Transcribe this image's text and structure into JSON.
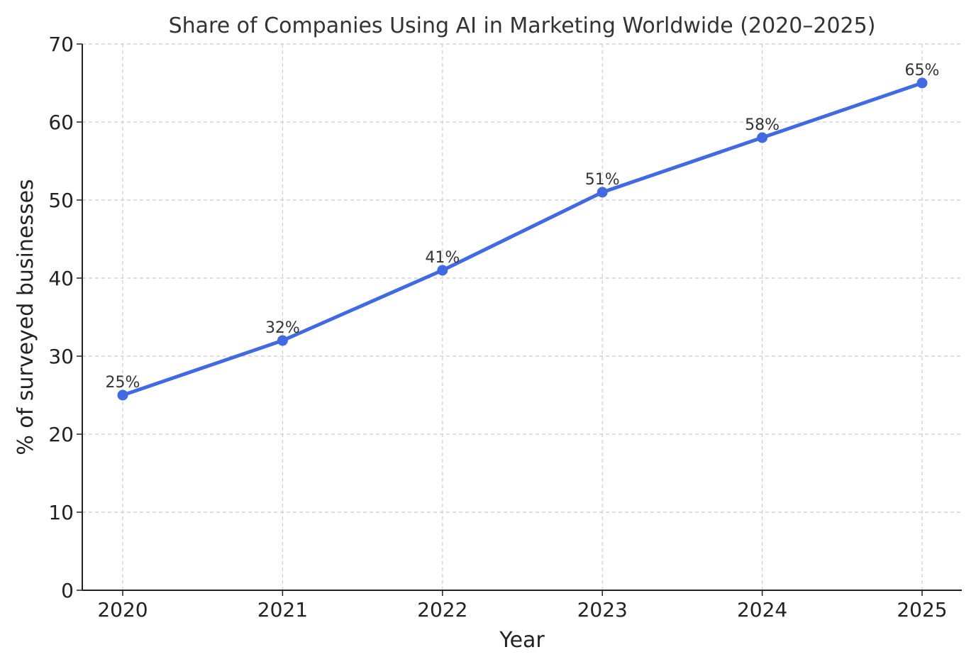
{
  "chart_data": {
    "type": "line",
    "title": "Share of Companies Using AI in Marketing Worldwide (2020–2025)",
    "xlabel": "Year",
    "ylabel": "% of surveyed businesses",
    "categories": [
      "2020",
      "2021",
      "2022",
      "2023",
      "2024",
      "2025"
    ],
    "series": [
      {
        "values": [
          25,
          32,
          41,
          51,
          58,
          65
        ],
        "data_labels": [
          "25%",
          "32%",
          "41%",
          "51%",
          "58%",
          "65%"
        ],
        "color": "#4169E1",
        "marker": "circle"
      }
    ],
    "ylim": [
      0,
      70
    ],
    "yticks": [
      "0",
      "10",
      "20",
      "30",
      "40",
      "50",
      "60",
      "70"
    ],
    "grid": true,
    "legend": "none"
  }
}
